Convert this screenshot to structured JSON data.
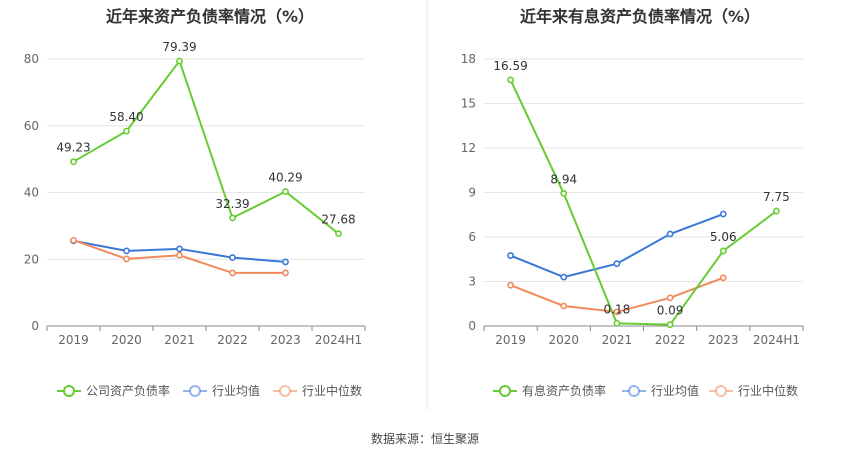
{
  "source": "数据来源：恒生聚源",
  "chart_data": [
    {
      "type": "line",
      "title": "近年来资产负债率情况（%）",
      "categories": [
        "2019",
        "2020",
        "2021",
        "2022",
        "2023",
        "2024H1"
      ],
      "ylim": [
        0,
        80
      ],
      "yticks": [
        0,
        20,
        40,
        60,
        80
      ],
      "grid": true,
      "legend_position": "bottom",
      "series": [
        {
          "name": "公司资产负债率",
          "color": "#66cc33",
          "values": [
            49.23,
            58.4,
            79.39,
            32.39,
            40.29,
            27.68
          ],
          "labels": [
            "49.23",
            "58.40",
            "79.39",
            "32.39",
            "40.29",
            "27.68"
          ]
        },
        {
          "name": "行业均值",
          "color": "#3a78d8",
          "values": [
            25.5,
            22.5,
            23.1,
            20.5,
            19.2,
            null
          ]
        },
        {
          "name": "行业中位数",
          "color": "#f08a5d",
          "values": [
            25.7,
            20.1,
            21.2,
            15.9,
            15.9,
            null
          ]
        }
      ]
    },
    {
      "type": "line",
      "title": "近年来有息资产负债率情况（%）",
      "categories": [
        "2019",
        "2020",
        "2021",
        "2022",
        "2023",
        "2024H1"
      ],
      "ylim": [
        0,
        18
      ],
      "yticks": [
        0,
        3,
        6,
        9,
        12,
        15,
        18
      ],
      "grid": true,
      "legend_position": "bottom",
      "series": [
        {
          "name": "有息资产负债率",
          "color": "#66cc33",
          "values": [
            16.59,
            8.94,
            0.18,
            0.09,
            5.06,
            7.75
          ],
          "labels": [
            "16.59",
            "8.94",
            "0.18",
            "0.09",
            "5.06",
            "7.75"
          ]
        },
        {
          "name": "行业均值",
          "color": "#3a78d8",
          "values": [
            4.75,
            3.3,
            4.2,
            6.2,
            7.55,
            null
          ]
        },
        {
          "name": "行业中位数",
          "color": "#f08a5d",
          "values": [
            2.75,
            1.35,
            0.95,
            1.9,
            3.25,
            null
          ]
        }
      ]
    }
  ]
}
